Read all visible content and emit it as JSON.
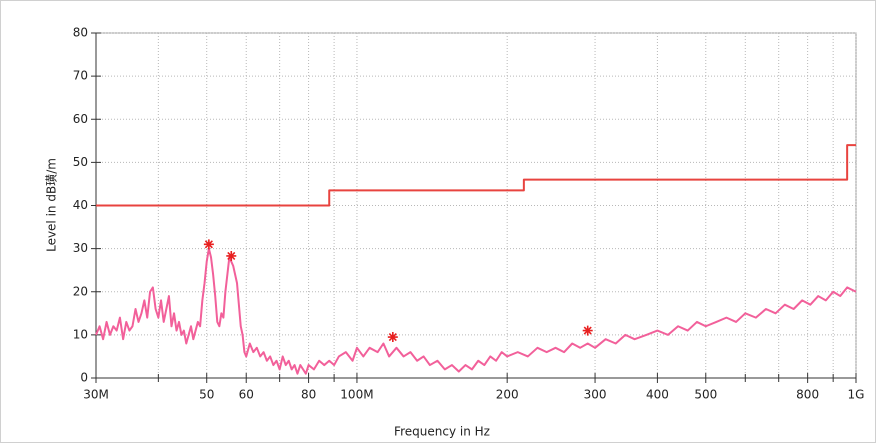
{
  "chart_data": {
    "type": "line",
    "xlabel": "Frequency in Hz",
    "ylabel": "Level in dB璜/m",
    "xscale": "log",
    "xlim": [
      30,
      1000
    ],
    "xticks": [
      {
        "value": 30,
        "label": "30M"
      },
      50,
      60,
      80,
      {
        "value": 100,
        "label": "100M"
      },
      200,
      300,
      400,
      500,
      800,
      {
        "value": 1000,
        "label": "1G"
      }
    ],
    "xminorticks": [
      40,
      70,
      90,
      600,
      700,
      900
    ],
    "ylim": [
      0,
      80
    ],
    "yticks": [
      0,
      10,
      20,
      30,
      40,
      50,
      60,
      70,
      80
    ],
    "grid": true,
    "series": [
      {
        "color": "#e8433f",
        "x": [
          30,
          88,
          88,
          216,
          216,
          960,
          960,
          1000
        ],
        "values": [
          40,
          40,
          43.5,
          43.5,
          46,
          46,
          54,
          54
        ]
      },
      {
        "color": "#f2609a",
        "x": [
          30,
          30.5,
          31,
          31.5,
          32,
          32.5,
          33,
          33.5,
          34,
          34.5,
          35,
          35.5,
          36,
          36.5,
          37,
          37.5,
          38,
          38.5,
          39,
          39.5,
          40,
          40.5,
          41,
          41.5,
          42,
          42.5,
          43,
          43.5,
          44,
          44.5,
          45,
          45.5,
          46,
          46.5,
          47,
          47.5,
          48,
          48.5,
          49,
          49.5,
          50,
          50.5,
          51,
          51.5,
          52,
          52.5,
          53,
          53.5,
          54,
          54.5,
          55,
          55.5,
          56,
          56.5,
          57,
          57.5,
          58,
          58.5,
          59,
          59.5,
          60,
          61,
          62,
          63,
          64,
          65,
          66,
          67,
          68,
          69,
          70,
          71,
          72,
          73,
          74,
          75,
          76,
          77,
          78,
          79,
          80,
          82,
          84,
          86,
          88,
          90,
          92,
          95,
          98,
          100,
          103,
          106,
          110,
          113,
          116,
          120,
          124,
          128,
          132,
          136,
          140,
          145,
          150,
          155,
          160,
          165,
          170,
          175,
          180,
          185,
          190,
          195,
          200,
          210,
          220,
          230,
          240,
          250,
          260,
          270,
          280,
          290,
          300,
          315,
          330,
          345,
          360,
          380,
          400,
          420,
          440,
          460,
          480,
          500,
          525,
          550,
          575,
          600,
          630,
          660,
          690,
          720,
          750,
          780,
          810,
          840,
          870,
          900,
          930,
          960,
          1000
        ],
        "values": [
          10,
          12,
          9,
          13,
          10,
          12,
          11,
          14,
          9,
          13,
          11,
          12,
          16,
          13,
          15,
          18,
          14,
          20,
          21,
          16,
          14,
          18,
          13,
          16,
          19,
          12,
          15,
          11,
          13,
          10,
          11,
          8,
          10,
          12,
          9,
          11,
          13,
          12,
          18,
          22,
          27,
          30,
          28,
          24,
          19,
          13,
          12,
          15,
          14,
          20,
          24,
          28,
          27,
          26,
          24,
          22,
          17,
          12,
          10,
          6,
          5,
          8,
          6,
          7,
          5,
          6,
          4,
          5,
          3,
          4,
          2,
          5,
          3,
          4,
          2,
          3,
          1,
          3,
          2,
          1,
          3,
          2,
          4,
          3,
          4,
          3,
          5,
          6,
          4,
          7,
          5,
          7,
          6,
          8,
          5,
          7,
          5,
          6,
          4,
          5,
          3,
          4,
          2,
          3,
          1.5,
          3,
          2,
          4,
          3,
          5,
          4,
          6,
          5,
          6,
          5,
          7,
          6,
          7,
          6,
          8,
          7,
          8,
          7,
          9,
          8,
          10,
          9,
          10,
          11,
          10,
          12,
          11,
          13,
          12,
          13,
          14,
          13,
          15,
          14,
          16,
          15,
          17,
          16,
          18,
          17,
          19,
          18,
          20,
          19,
          21,
          20
        ]
      },
      {
        "color": "#e82020",
        "type": "scatter",
        "x": [
          50.5,
          56,
          118,
          290
        ],
        "values": [
          31,
          28.3,
          9.5,
          11
        ]
      }
    ]
  }
}
